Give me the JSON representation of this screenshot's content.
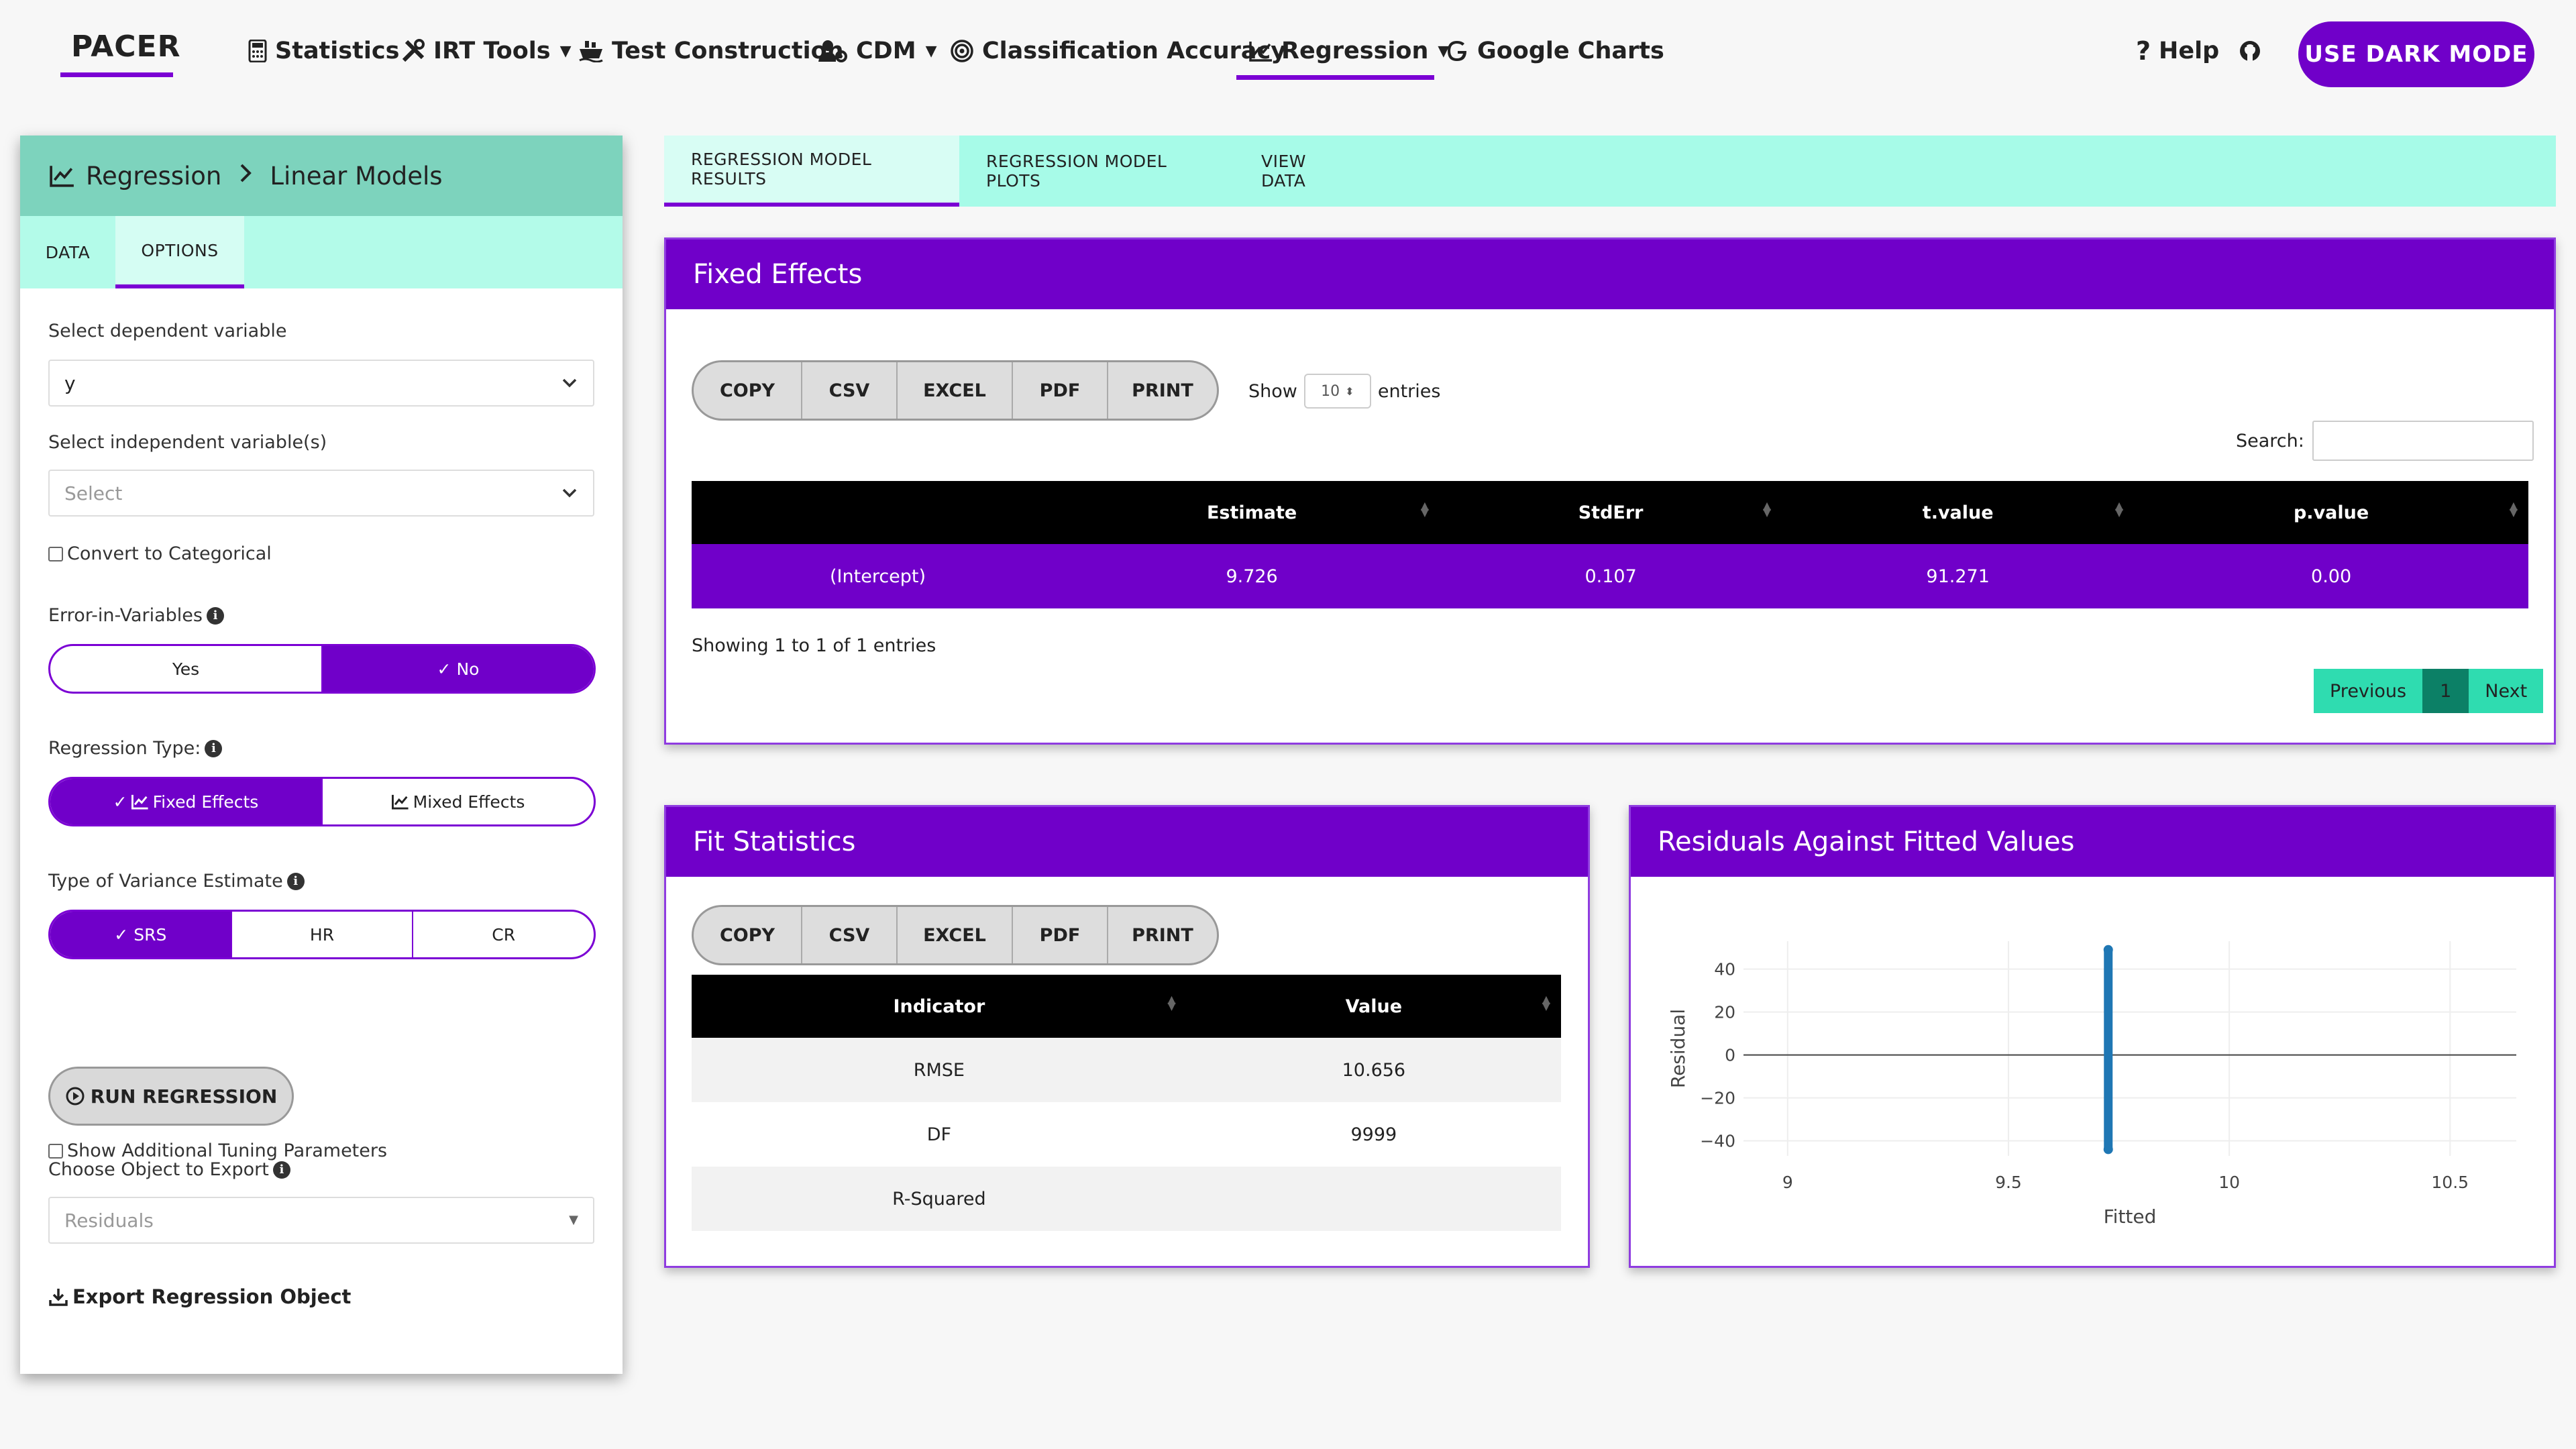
{
  "nav": {
    "brand": "PACER",
    "items": [
      {
        "label": "Statistics",
        "icon": "calculator-icon"
      },
      {
        "label": "IRT Tools",
        "icon": "tools-icon"
      },
      {
        "label": "Test Construction",
        "icon": "ship-icon"
      },
      {
        "label": "CDM",
        "icon": "users-cog-icon"
      },
      {
        "label": "Classification Accuracy",
        "icon": "bullseye-icon"
      },
      {
        "label": "Regression",
        "icon": "chart-line-icon"
      },
      {
        "label": "Google Charts",
        "icon": "google-icon"
      }
    ],
    "help": "Help",
    "dark_mode_button": "USE DARK MODE"
  },
  "sidebar": {
    "breadcrumb": {
      "root": "Regression",
      "sep": ">",
      "current": "Linear Models"
    },
    "tabs": [
      "DATA",
      "OPTIONS"
    ],
    "dependent_label": "Select dependent variable",
    "dependent_value": "y",
    "independent_label": "Select independent variable(s)",
    "independent_placeholder": "Select",
    "convert_categorical": "Convert to Categorical",
    "eiv_label": "Error-in-Variables",
    "eiv_options": [
      "Yes",
      "No"
    ],
    "regression_type_label": "Regression Type:",
    "regression_type_options": [
      "Fixed Effects",
      "Mixed Effects"
    ],
    "variance_label": "Type of Variance Estimate",
    "variance_options": [
      "SRS",
      "HR",
      "CR"
    ],
    "tuning_label": "Show Additional Tuning Parameters",
    "run_button": "RUN REGRESSION",
    "export_label": "Choose Object to Export",
    "export_value": "Residuals",
    "export_link": "Export Regression Object"
  },
  "main_tabs": [
    "REGRESSION MODEL RESULTS",
    "REGRESSION MODEL PLOTS",
    "VIEW DATA"
  ],
  "fixed_effects": {
    "title": "Fixed Effects",
    "buttons": [
      "COPY",
      "CSV",
      "EXCEL",
      "PDF",
      "PRINT"
    ],
    "show_label": "Show",
    "show_value": "10",
    "entries_label": "entries",
    "search_label": "Search:",
    "columns": [
      "",
      "Estimate",
      "StdErr",
      "t.value",
      "p.value"
    ],
    "rows": [
      [
        "(Intercept)",
        "9.726",
        "0.107",
        "91.271",
        "0.00"
      ]
    ],
    "info": "Showing 1 to 1 of 1 entries",
    "pager": {
      "prev": "Previous",
      "page": "1",
      "next": "Next"
    }
  },
  "fit_statistics": {
    "title": "Fit Statistics",
    "buttons": [
      "COPY",
      "CSV",
      "EXCEL",
      "PDF",
      "PRINT"
    ],
    "columns": [
      "Indicator",
      "Value"
    ],
    "rows": [
      [
        "RMSE",
        "10.656"
      ],
      [
        "DF",
        "9999"
      ],
      [
        "R-Squared",
        ""
      ]
    ]
  },
  "residuals_panel": {
    "title": "Residuals Against Fitted Values"
  },
  "chart_data": {
    "type": "scatter",
    "title": "",
    "xlabel": "Fitted",
    "ylabel": "Residual",
    "xlim": [
      8.9,
      10.65
    ],
    "ylim": [
      -47,
      53
    ],
    "x_ticks": [
      "9",
      "9.5",
      "10",
      "10.5"
    ],
    "x_tick_values": [
      9,
      9.5,
      10,
      10.5
    ],
    "y_ticks": [
      "40",
      "20",
      "0",
      "−20",
      "−40"
    ],
    "y_tick_values": [
      40,
      20,
      0,
      -20,
      -40
    ],
    "series": [
      {
        "x": 9.726,
        "y_min": -44,
        "y_max": 49
      }
    ],
    "color": "#1f77b4",
    "zero_line": true,
    "grid": true
  },
  "colors": {
    "accent": "#7000c9",
    "teal": "#a7fbe8",
    "teal_dark": "#7dd3bd",
    "pager": "#2fdcb0"
  }
}
